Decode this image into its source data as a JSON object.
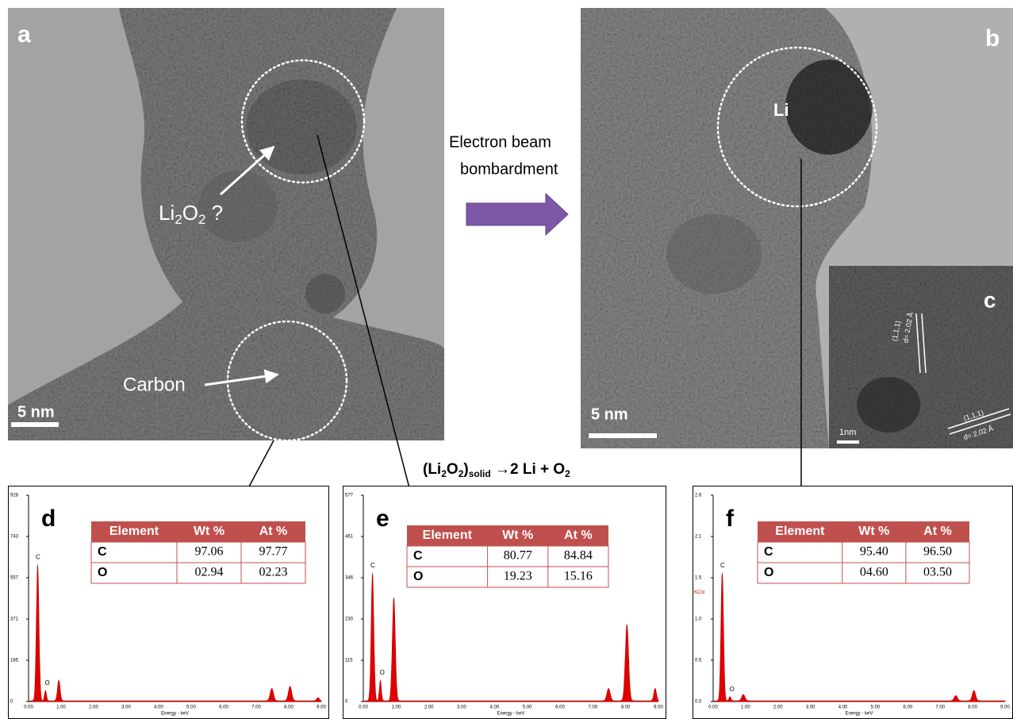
{
  "tem_a": {
    "label": "a",
    "annotation_li2o2": [
      "Li",
      "2",
      "O",
      "2",
      " ?"
    ],
    "annotation_carbon": "Carbon",
    "scale_bar": "5 nm"
  },
  "process": {
    "line1": "Electron beam",
    "line2": "bombardment"
  },
  "tem_b": {
    "label": "b",
    "annotation": "Li",
    "scale_bar": "5 nm"
  },
  "inset_c": {
    "label": "c",
    "plane_1": "(1,1,1)",
    "spacing_1": "d= 2.02 Å",
    "plane_2": "(1,1,1)",
    "spacing_2": "d= 2.02 Å",
    "scale_bar": "1nm"
  },
  "reaction": [
    "(Li",
    "2",
    "O",
    "2",
    ")",
    "solid",
    " →2 Li + O",
    "2"
  ],
  "spectra": [
    {
      "label": "d",
      "yticks": [
        "928",
        "743",
        "557",
        "371",
        "185",
        "0"
      ],
      "xticks": [
        "0.00",
        "1.00",
        "2.00",
        "3.00",
        "4.00",
        "5.00",
        "6.00",
        "7.00",
        "8.00",
        "9.00"
      ],
      "xlabel": "Energy - keV",
      "peak_c": "C",
      "peak_o": "O",
      "table": {
        "header": [
          "Element",
          "Wt %",
          "At %"
        ],
        "rows": [
          [
            "C",
            "97.06",
            "97.77"
          ],
          [
            "O",
            "02.94",
            "02.23"
          ]
        ]
      }
    },
    {
      "label": "e",
      "yticks": [
        "577",
        "461",
        "346",
        "230",
        "115",
        "0"
      ],
      "xticks": [
        "0.00",
        "1.00",
        "2.00",
        "3.00",
        "4.00",
        "5.00",
        "6.00",
        "7.00",
        "8.00",
        "9.00"
      ],
      "xlabel": "Energy - keV",
      "peak_c": "C",
      "peak_o": "O",
      "table": {
        "header": [
          "Element",
          "Wt %",
          "At %"
        ],
        "rows": [
          [
            "C",
            "80.77",
            "84.84"
          ],
          [
            "O",
            "19.23",
            "15.16"
          ]
        ]
      }
    },
    {
      "label": "f",
      "yticks": [
        "2.6",
        "2.1",
        "1.5",
        "1.0",
        "0.5",
        "0.0"
      ],
      "xticks": [
        "0.00",
        "1.00",
        "2.00",
        "3.00",
        "4.00",
        "5.00",
        "6.00",
        "7.00",
        "8.00",
        "9.00"
      ],
      "xlabel": "Energy - keV",
      "peak_c": "C",
      "peak_o": "O",
      "unit": "KCnt",
      "table": {
        "header": [
          "Element",
          "Wt %",
          "At %"
        ],
        "rows": [
          [
            "C",
            "95.40",
            "96.50"
          ],
          [
            "O",
            "04.60",
            "03.50"
          ]
        ]
      }
    }
  ]
}
